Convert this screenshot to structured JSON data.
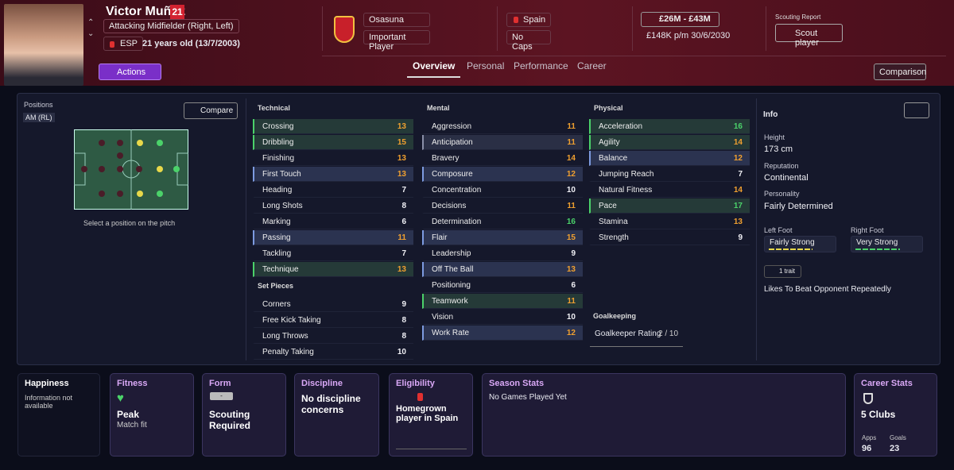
{
  "header": {
    "name": "Victor Muñoz",
    "number": "21",
    "role": "Attacking Midfielder (Right, Left)",
    "nationality": "ESP",
    "age": "21 years old (13/7/2003)",
    "actions": "Actions",
    "club": "Osasuna",
    "status": "Important Player",
    "country": "Spain",
    "caps": "No Caps",
    "value": "£26M - £43M",
    "wage": "£148K p/m 30/6/2030",
    "scouting_label": "Scouting Report",
    "scout_button": "Scout player",
    "tabs": [
      "Overview",
      "Personal",
      "Performance",
      "Career"
    ],
    "comparison": "Comparison"
  },
  "positions": {
    "title": "Positions",
    "current": "AM (RL)",
    "compare": "Compare",
    "hint": "Select a position on the pitch"
  },
  "attributes": {
    "technical": {
      "title": "Technical",
      "rows": [
        [
          "Crossing",
          13
        ],
        [
          "Dribbling",
          15
        ],
        [
          "Finishing",
          13
        ],
        [
          "First Touch",
          13
        ],
        [
          "Heading",
          7
        ],
        [
          "Long Shots",
          8
        ],
        [
          "Marking",
          6
        ],
        [
          "Passing",
          11
        ],
        [
          "Tackling",
          7
        ],
        [
          "Technique",
          13
        ]
      ]
    },
    "set_pieces": {
      "title": "Set Pieces",
      "rows": [
        [
          "Corners",
          9
        ],
        [
          "Free Kick Taking",
          8
        ],
        [
          "Long Throws",
          8
        ],
        [
          "Penalty Taking",
          10
        ]
      ]
    },
    "mental": {
      "title": "Mental",
      "rows": [
        [
          "Aggression",
          11
        ],
        [
          "Anticipation",
          11
        ],
        [
          "Bravery",
          14
        ],
        [
          "Composure",
          12
        ],
        [
          "Concentration",
          10
        ],
        [
          "Decisions",
          11
        ],
        [
          "Determination",
          16
        ],
        [
          "Flair",
          15
        ],
        [
          "Leadership",
          9
        ],
        [
          "Off The Ball",
          13
        ],
        [
          "Positioning",
          6
        ],
        [
          "Teamwork",
          11
        ],
        [
          "Vision",
          10
        ],
        [
          "Work Rate",
          12
        ]
      ]
    },
    "physical": {
      "title": "Physical",
      "rows": [
        [
          "Acceleration",
          16
        ],
        [
          "Agility",
          14
        ],
        [
          "Balance",
          12
        ],
        [
          "Jumping Reach",
          7
        ],
        [
          "Natural Fitness",
          14
        ],
        [
          "Pace",
          17
        ],
        [
          "Stamina",
          13
        ],
        [
          "Strength",
          9
        ]
      ]
    },
    "goalkeeping": {
      "title": "Goalkeeping",
      "label": "Goalkeeper Rating",
      "rating": "2 / 10"
    }
  },
  "info": {
    "title": "Info",
    "height_label": "Height",
    "height": "173 cm",
    "reputation_label": "Reputation",
    "reputation": "Continental",
    "personality_label": "Personality",
    "personality": "Fairly Determined",
    "left_foot_label": "Left Foot",
    "left_foot": "Fairly Strong",
    "right_foot_label": "Right Foot",
    "right_foot": "Very Strong",
    "traits": "1 trait",
    "trait": "Likes To Beat Opponent Repeatedly"
  },
  "cards": {
    "happiness": {
      "title": "Happiness",
      "text": "Information not available"
    },
    "fitness": {
      "title": "Fitness",
      "value": "Peak",
      "sub": "Match fit"
    },
    "form": {
      "title": "Form",
      "badge": "-",
      "value": "Scouting Required"
    },
    "discipline": {
      "title": "Discipline",
      "value": "No discipline concerns"
    },
    "eligibility": {
      "title": "Eligibility",
      "value": "Homegrown player in Spain"
    },
    "season": {
      "title": "Season Stats",
      "value": "No Games Played Yet"
    },
    "career": {
      "title": "Career Stats",
      "value": "5 Clubs",
      "apps_label": "Apps",
      "apps": 96,
      "goals_label": "Goals",
      "goals": 23
    }
  }
}
